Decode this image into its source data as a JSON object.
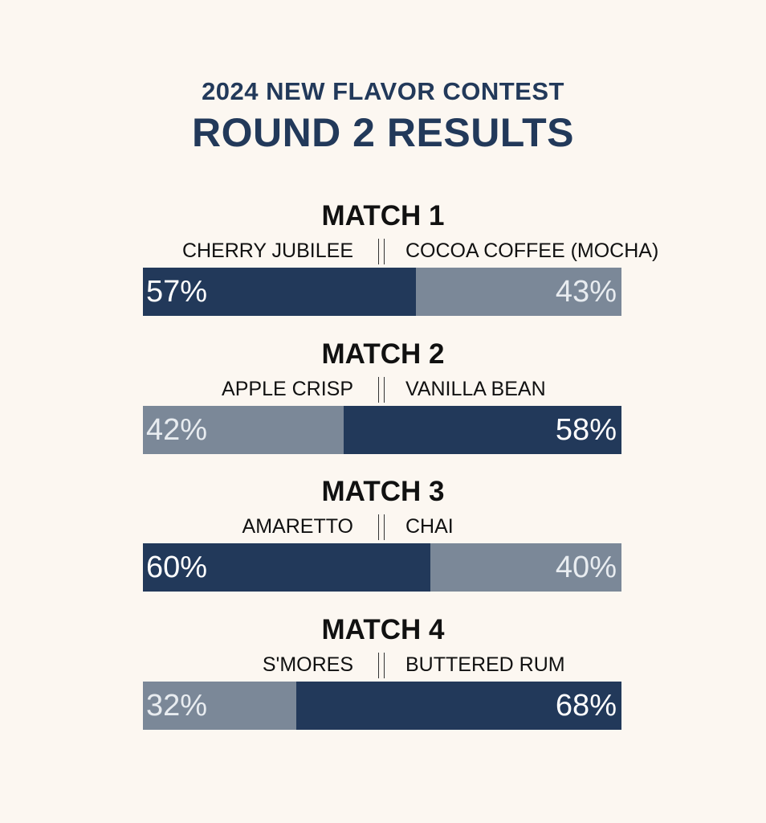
{
  "header": {
    "subtitle": "2024 NEW FLAVOR CONTEST",
    "title": "ROUND 2 RESULTS"
  },
  "colors": {
    "background": "#FCF7F1",
    "winner": "#22395A",
    "loser": "#7B8898",
    "title_text": "#22395A"
  },
  "chart_data": {
    "type": "bar",
    "stacked": true,
    "normalized_percent": true,
    "matches": [
      {
        "title": "MATCH 1",
        "left": {
          "name": "CHERRY JUBILEE",
          "value": 57,
          "label": "57%"
        },
        "right": {
          "name": "COCOA COFFEE (MOCHA)",
          "value": 43,
          "label": "43%"
        }
      },
      {
        "title": "MATCH 2",
        "left": {
          "name": "APPLE CRISP",
          "value": 42,
          "label": "42%"
        },
        "right": {
          "name": "VANILLA BEAN",
          "value": 58,
          "label": "58%"
        }
      },
      {
        "title": "MATCH 3",
        "left": {
          "name": "AMARETTO",
          "value": 60,
          "label": "60%"
        },
        "right": {
          "name": "CHAI",
          "value": 40,
          "label": "40%"
        }
      },
      {
        "title": "MATCH 4",
        "left": {
          "name": "S'MORES",
          "value": 32,
          "label": "32%"
        },
        "right": {
          "name": "BUTTERED RUM",
          "value": 68,
          "label": "68%"
        }
      }
    ]
  }
}
